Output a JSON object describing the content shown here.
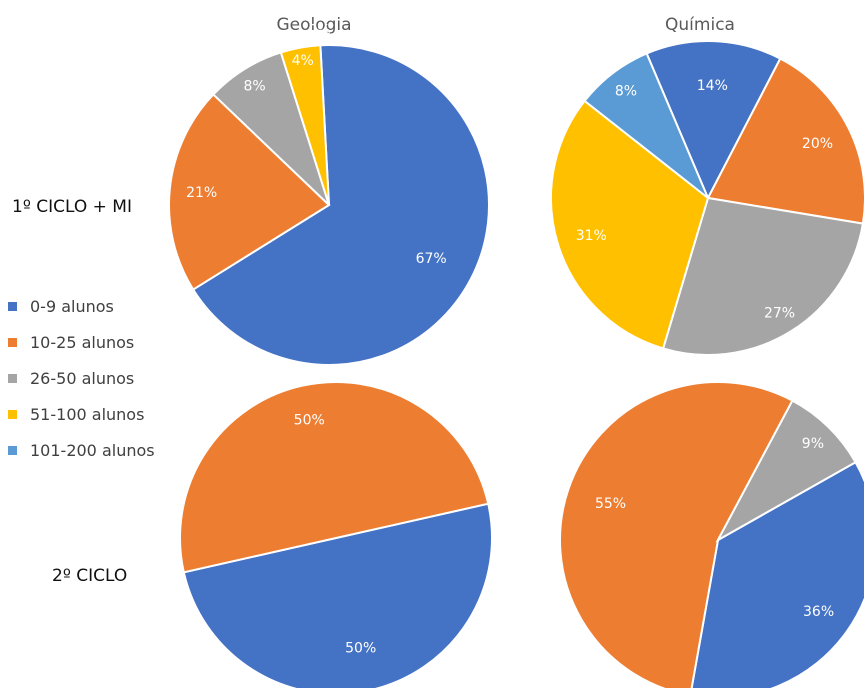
{
  "columns": [
    "Geologia",
    "Química"
  ],
  "rows": [
    "1º CICLO + MI",
    "2º CICLO"
  ],
  "colors": {
    "0-9 alunos": "#4472C4",
    "10-25 alunos": "#ED7D31",
    "26-50 alunos": "#A5A5A5",
    "51-100 alunos": "#FFC000",
    "101-200 alunos": "#5B9BD5"
  },
  "chart_data": [
    {
      "type": "pie",
      "title": "Geologia",
      "row": "1º CICLO + MI",
      "categories": [
        "0-9 alunos",
        "10-25 alunos",
        "26-50 alunos",
        "51-100 alunos",
        "101-200 alunos"
      ],
      "values": [
        67,
        21,
        8,
        4,
        0
      ],
      "labels": [
        "67%",
        "21%",
        "8%",
        "4%",
        "0%"
      ]
    },
    {
      "type": "pie",
      "title": "Química",
      "row": "1º CICLO + MI",
      "categories": [
        "0-9 alunos",
        "10-25 alunos",
        "26-50 alunos",
        "51-100 alunos",
        "101-200 alunos"
      ],
      "values": [
        14,
        20,
        27,
        31,
        8
      ],
      "labels": [
        "14%",
        "20%",
        "27%",
        "31%",
        "8%"
      ]
    },
    {
      "type": "pie",
      "title": "",
      "row": "2º CICLO",
      "categories": [
        "0-9 alunos",
        "10-25 alunos"
      ],
      "values": [
        50,
        50
      ],
      "labels": [
        "50%",
        "50%"
      ]
    },
    {
      "type": "pie",
      "title": "",
      "row": "2º CICLO",
      "categories": [
        "0-9 alunos",
        "10-25 alunos",
        "26-50 alunos",
        "51-100 alunos",
        "101-200 alunos"
      ],
      "values": [
        36,
        55,
        9,
        0,
        0
      ],
      "labels": [
        "36%",
        "55%",
        "9%",
        "0%",
        "0%"
      ]
    }
  ]
}
